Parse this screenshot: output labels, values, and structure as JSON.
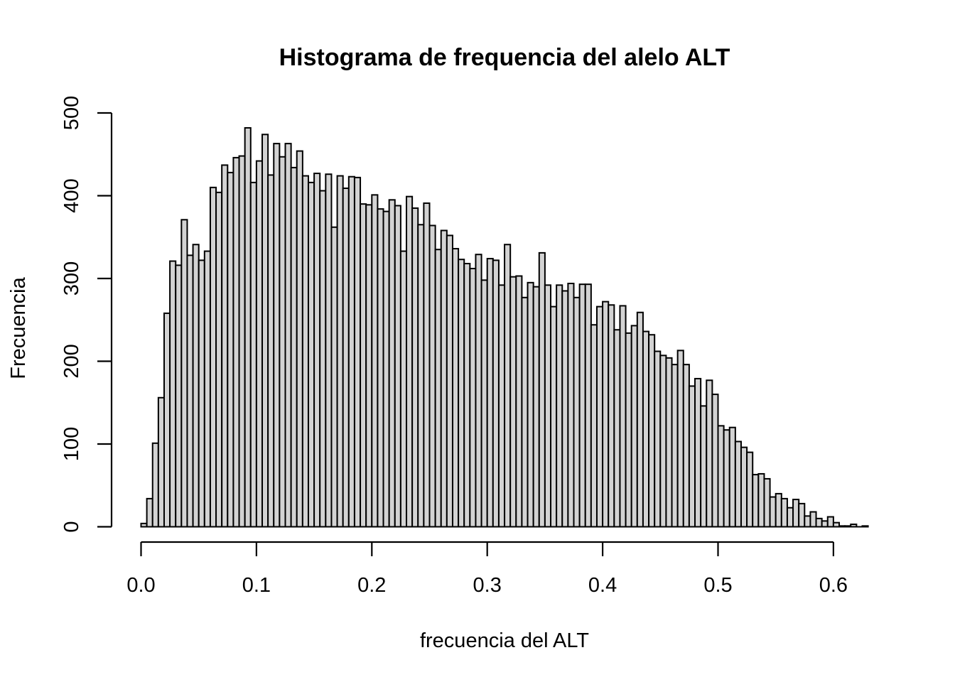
{
  "chart_data": {
    "type": "bar",
    "title": "Histograma de frequencia del alelo ALT",
    "xlabel": "frecuencia del ALT",
    "ylabel": "Frecuencia",
    "bin_width": 0.005,
    "bin_start": 0.0,
    "xlim": [
      0.0,
      0.63
    ],
    "ylim": [
      0,
      500
    ],
    "x_ticks": [
      {
        "value": 0.0,
        "label": "0.0"
      },
      {
        "value": 0.1,
        "label": "0.1"
      },
      {
        "value": 0.2,
        "label": "0.2"
      },
      {
        "value": 0.3,
        "label": "0.3"
      },
      {
        "value": 0.4,
        "label": "0.4"
      },
      {
        "value": 0.5,
        "label": "0.5"
      },
      {
        "value": 0.6,
        "label": "0.6"
      }
    ],
    "y_ticks": [
      {
        "value": 0,
        "label": "0"
      },
      {
        "value": 100,
        "label": "100"
      },
      {
        "value": 200,
        "label": "200"
      },
      {
        "value": 300,
        "label": "300"
      },
      {
        "value": 400,
        "label": "400"
      },
      {
        "value": 500,
        "label": "500"
      }
    ],
    "values": [
      4,
      34,
      101,
      156,
      258,
      321,
      316,
      371,
      328,
      341,
      322,
      333,
      410,
      404,
      437,
      428,
      446,
      448,
      482,
      416,
      442,
      474,
      425,
      463,
      447,
      463,
      434,
      454,
      424,
      416,
      427,
      406,
      426,
      362,
      424,
      409,
      423,
      422,
      390,
      389,
      401,
      384,
      381,
      395,
      388,
      333,
      399,
      385,
      365,
      391,
      364,
      335,
      358,
      352,
      336,
      323,
      318,
      312,
      329,
      298,
      324,
      322,
      292,
      341,
      302,
      303,
      277,
      295,
      290,
      331,
      292,
      266,
      292,
      285,
      294,
      277,
      293,
      293,
      244,
      266,
      272,
      268,
      238,
      267,
      234,
      243,
      259,
      236,
      232,
      212,
      207,
      204,
      196,
      213,
      196,
      170,
      179,
      146,
      177,
      160,
      122,
      117,
      120,
      103,
      96,
      90,
      63,
      64,
      58,
      36,
      40,
      34,
      23,
      33,
      28,
      13,
      18,
      10,
      7,
      12,
      5,
      1,
      1,
      3,
      0,
      1
    ],
    "grid": false,
    "legend": false
  }
}
